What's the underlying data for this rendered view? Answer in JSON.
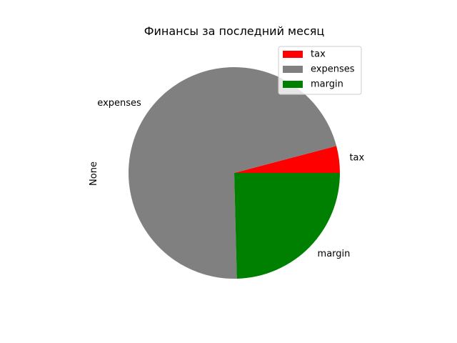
{
  "chart_data": {
    "type": "pie",
    "title": "Финансы за последний месяц",
    "ylabel": "None",
    "slices": [
      {
        "label": "tax",
        "value": 4.1,
        "color": "#ff0000"
      },
      {
        "label": "expenses",
        "value": 71.3,
        "color": "#808080"
      },
      {
        "label": "margin",
        "value": 24.6,
        "color": "#008000"
      }
    ],
    "start_angle_deg": 0,
    "direction": "counterclockwise",
    "legend": {
      "location": "top-right",
      "entries": [
        {
          "label": "tax",
          "color": "#ff0000"
        },
        {
          "label": "expenses",
          "color": "#808080"
        },
        {
          "label": "margin",
          "color": "#008000"
        }
      ]
    }
  }
}
